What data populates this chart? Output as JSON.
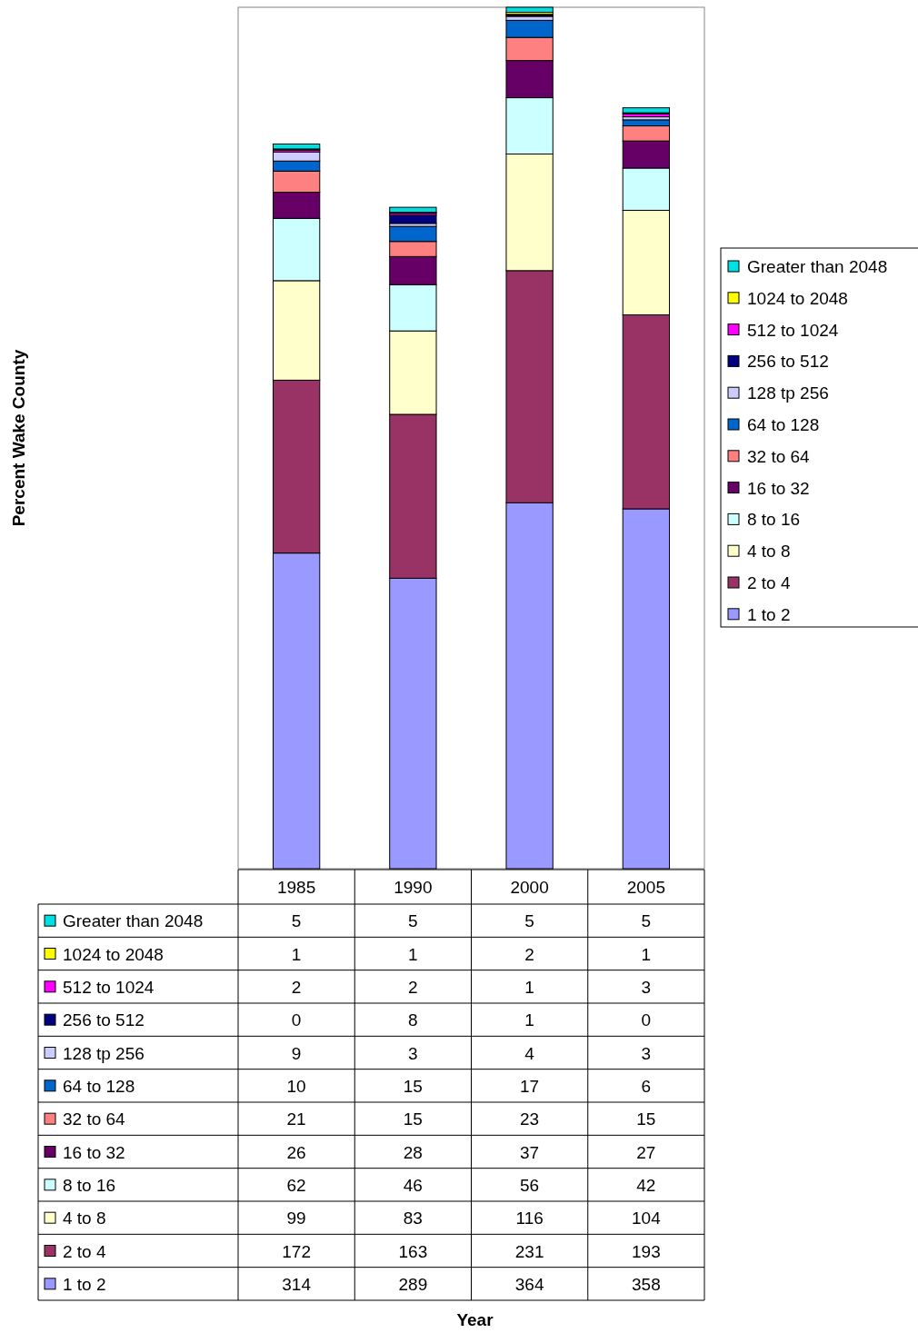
{
  "chart_data": {
    "type": "bar",
    "annotations": [
      "Percent Wake County",
      "Year"
    ],
    "categories": [
      "1985",
      "1990",
      "2000",
      "2005"
    ],
    "stacked": true,
    "data_labels": true,
    "legend": "right",
    "grid": false,
    "series": [
      {
        "name": "1 to 2",
        "color": "#9999ff",
        "values": [
          314,
          289,
          364,
          358
        ]
      },
      {
        "name": "2 to 4",
        "color": "#993366",
        "values": [
          172,
          163,
          231,
          193
        ]
      },
      {
        "name": "4 to 8",
        "color": "#ffffcc",
        "values": [
          99,
          83,
          116,
          104
        ]
      },
      {
        "name": "8 to 16",
        "color": "#ccffff",
        "values": [
          62,
          46,
          56,
          42
        ]
      },
      {
        "name": "16 to 32",
        "color": "#660066",
        "values": [
          26,
          28,
          37,
          27
        ]
      },
      {
        "name": "32 to 64",
        "color": "#ff8080",
        "values": [
          21,
          15,
          23,
          15
        ]
      },
      {
        "name": "64 to 128",
        "color": "#0066cc",
        "values": [
          10,
          15,
          17,
          6
        ]
      },
      {
        "name": "128 tp 256",
        "color": "#ccccff",
        "values": [
          9,
          3,
          4,
          3
        ]
      },
      {
        "name": "256 to 512",
        "color": "#000080",
        "values": [
          0,
          8,
          1,
          0
        ]
      },
      {
        "name": "512 to 1024",
        "color": "#ff00ff",
        "values": [
          2,
          2,
          1,
          3
        ]
      },
      {
        "name": "1024 to 2048",
        "color": "#ffff00",
        "values": [
          1,
          1,
          2,
          1
        ]
      },
      {
        "name": "Greater than 2048",
        "color": "#00e0e0",
        "values": [
          5,
          5,
          5,
          5
        ]
      }
    ]
  }
}
